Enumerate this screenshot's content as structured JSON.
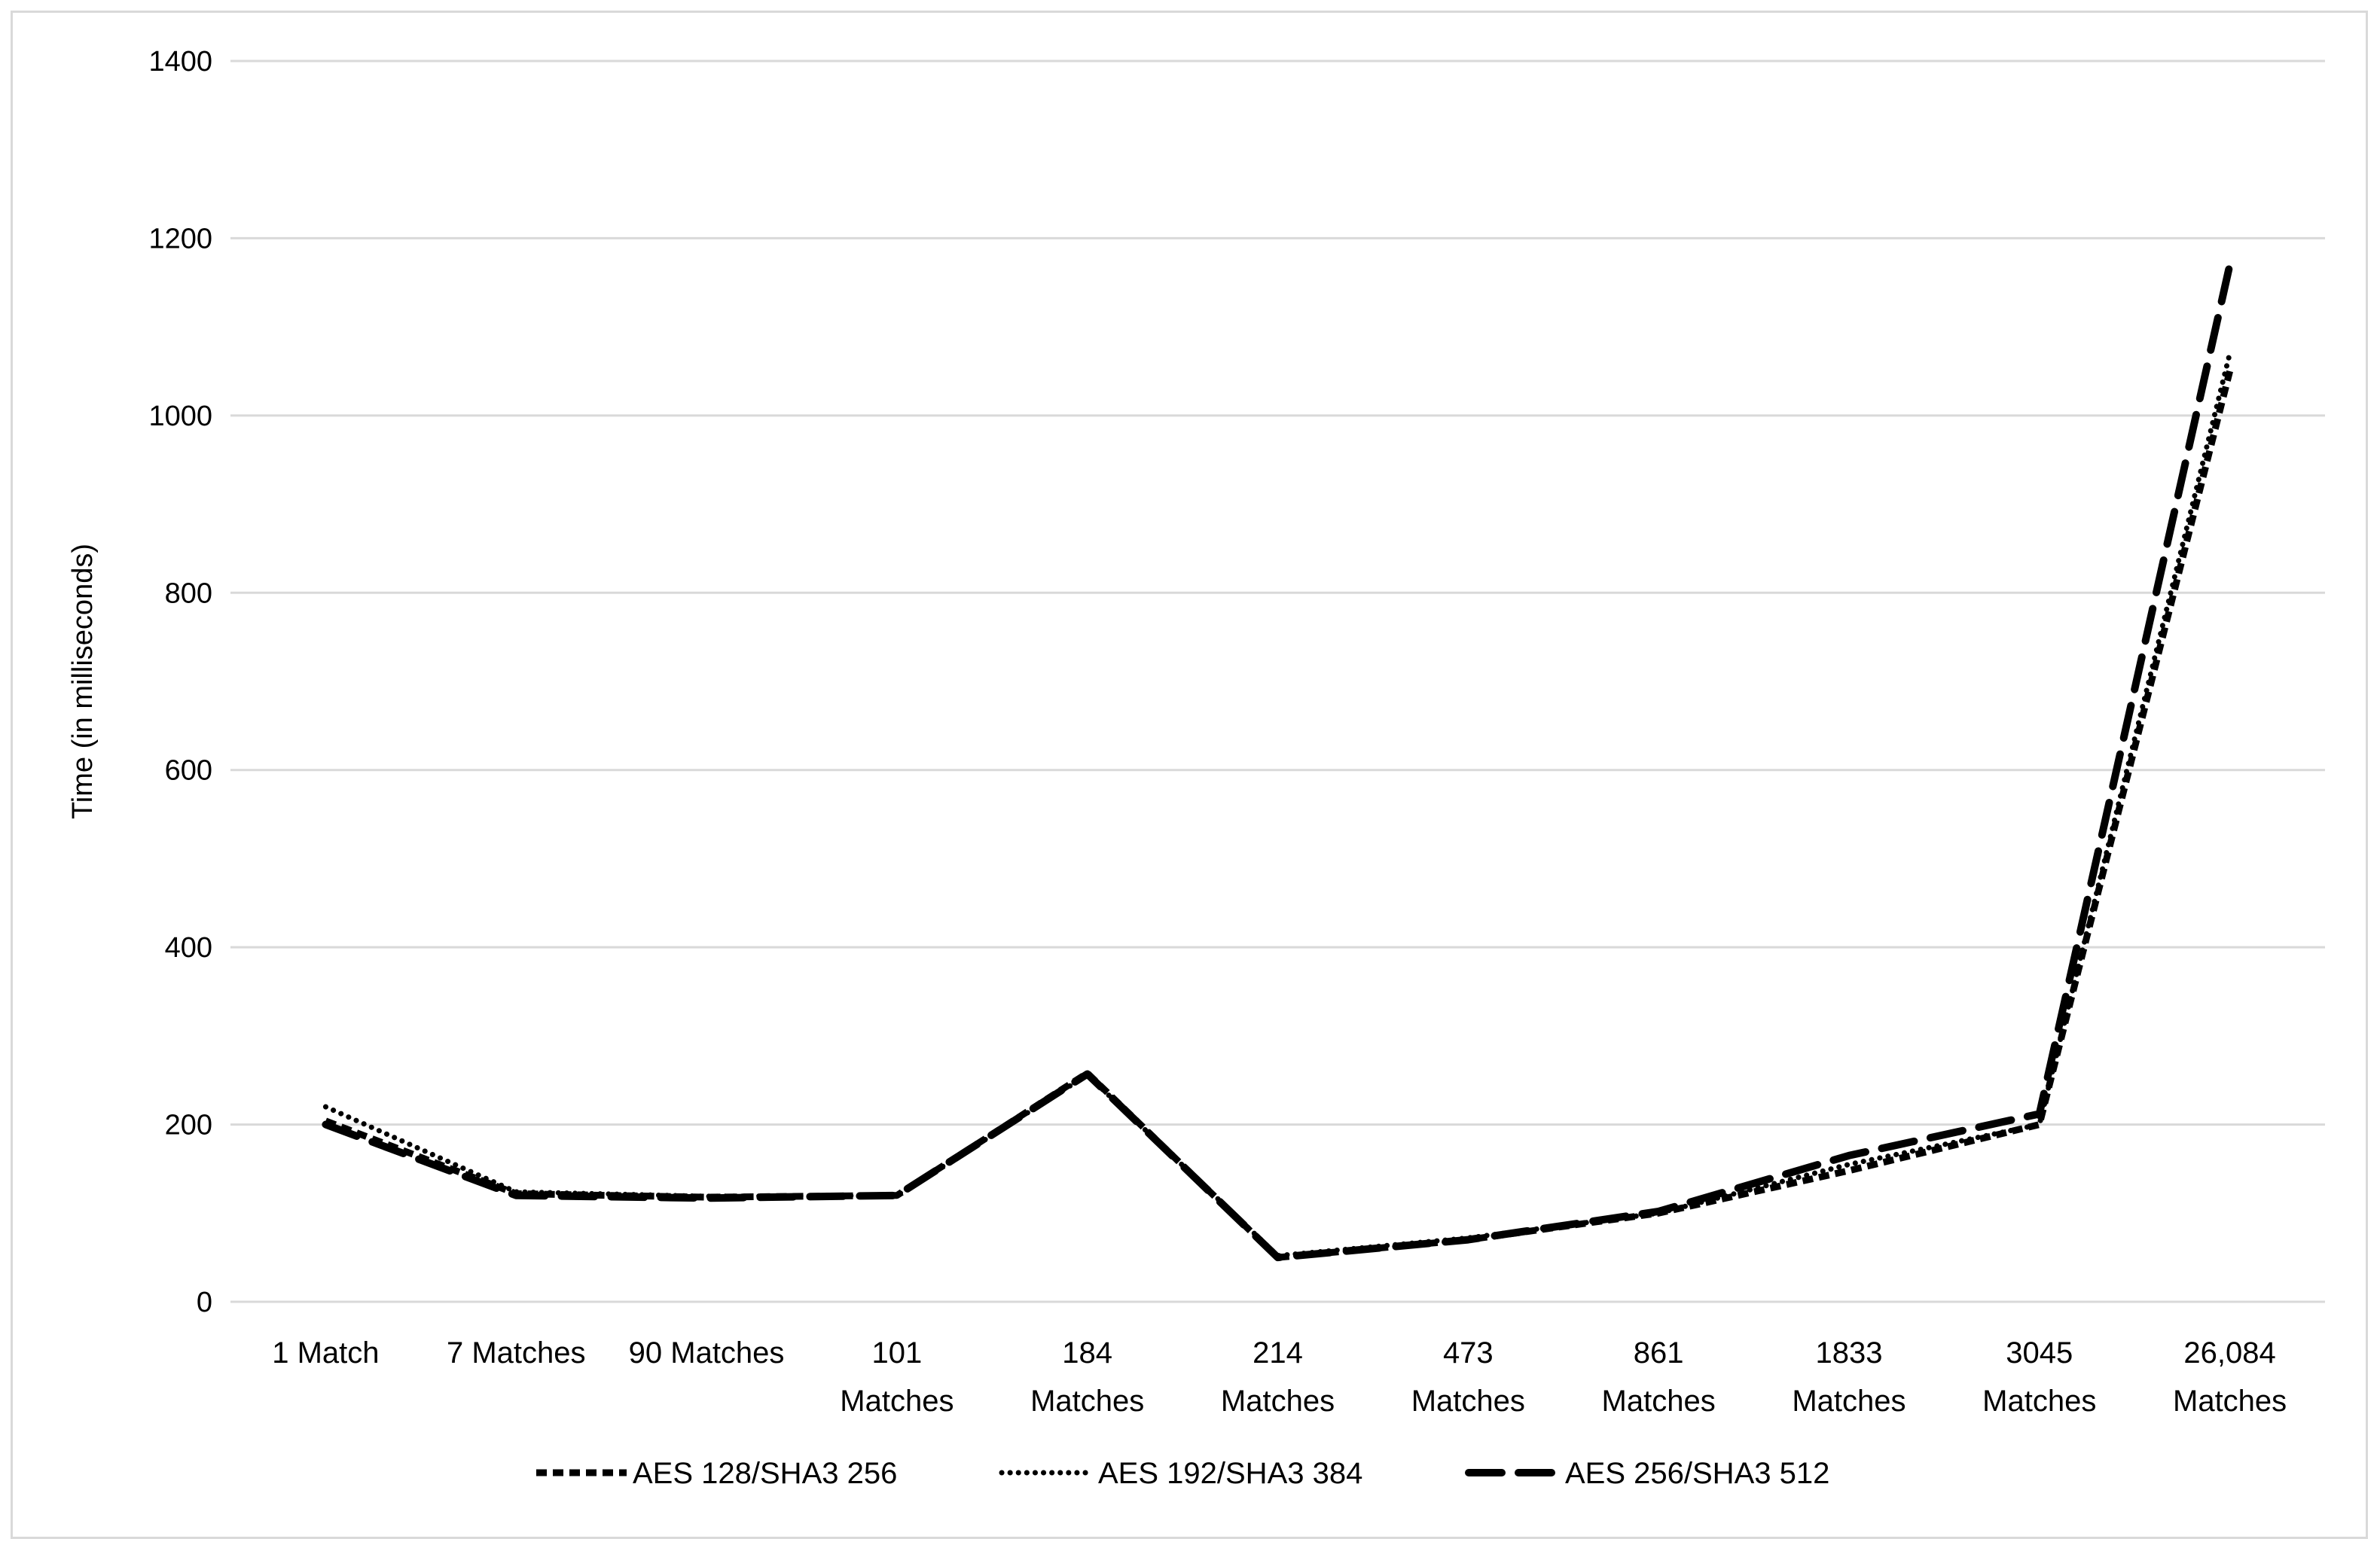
{
  "chart_data": {
    "type": "line",
    "title": "",
    "xlabel": "",
    "ylabel": "Time (in milliseconds)",
    "ylim": [
      0,
      1400
    ],
    "yticks": [
      0,
      200,
      400,
      600,
      800,
      1000,
      1200,
      1400
    ],
    "grid": true,
    "legend_position": "bottom",
    "categories": [
      "1 Match",
      "7 Matches",
      "90 Matches",
      "101 Matches",
      "184 Matches",
      "214 Matches",
      "473 Matches",
      "861 Matches",
      "1833 Matches",
      "3045 Matches",
      "26,084 Matches"
    ],
    "category_lines": [
      [
        "1 Match"
      ],
      [
        "7 Matches"
      ],
      [
        "90 Matches"
      ],
      [
        "101",
        "Matches"
      ],
      [
        "184",
        "Matches"
      ],
      [
        "214",
        "Matches"
      ],
      [
        "473",
        "Matches"
      ],
      [
        "861",
        "Matches"
      ],
      [
        "1833",
        "Matches"
      ],
      [
        "3045",
        "Matches"
      ],
      [
        "26,084",
        "Matches"
      ]
    ],
    "series": [
      {
        "name": "AES 128/SHA3 256",
        "dash": "square-dot",
        "color": "#000000",
        "values": [
          204,
          122,
          118,
          120,
          258,
          50,
          70,
          100,
          148,
          200,
          1050
        ]
      },
      {
        "name": "AES 192/SHA3 384",
        "dash": "round-dot",
        "color": "#000000",
        "values": [
          220,
          124,
          119,
          120,
          256,
          52,
          72,
          100,
          155,
          200,
          1070
        ]
      },
      {
        "name": "AES 256/SHA3 512",
        "dash": "long-dash",
        "color": "#000000",
        "values": [
          200,
          120,
          117,
          120,
          257,
          50,
          70,
          102,
          165,
          212,
          1170
        ]
      }
    ]
  }
}
